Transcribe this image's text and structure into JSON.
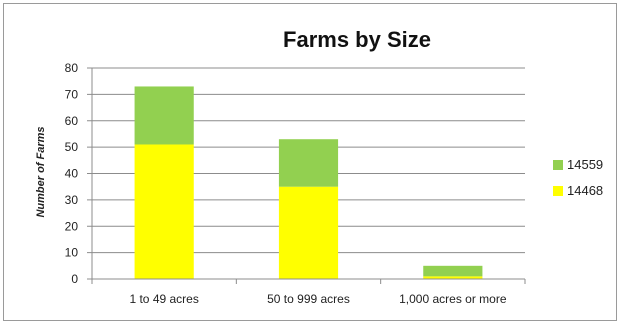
{
  "chart_data": {
    "type": "bar",
    "stacked": true,
    "title": "Farms by Size",
    "ylabel": "Number of Farms",
    "xlabel": "",
    "categories": [
      "1 to 49 acres",
      "50 to 999 acres",
      "1,000 acres or more"
    ],
    "series": [
      {
        "name": "14468",
        "values": [
          51,
          35,
          1
        ],
        "color": "#ffff00"
      },
      {
        "name": "14559",
        "values": [
          22,
          18,
          4
        ],
        "color": "#92d050"
      }
    ],
    "ylim": [
      0,
      80
    ],
    "yticks": [
      0,
      10,
      20,
      30,
      40,
      50,
      60,
      70,
      80
    ],
    "grid": true,
    "legend": "right",
    "legend_order": [
      "14559",
      "14468"
    ]
  }
}
